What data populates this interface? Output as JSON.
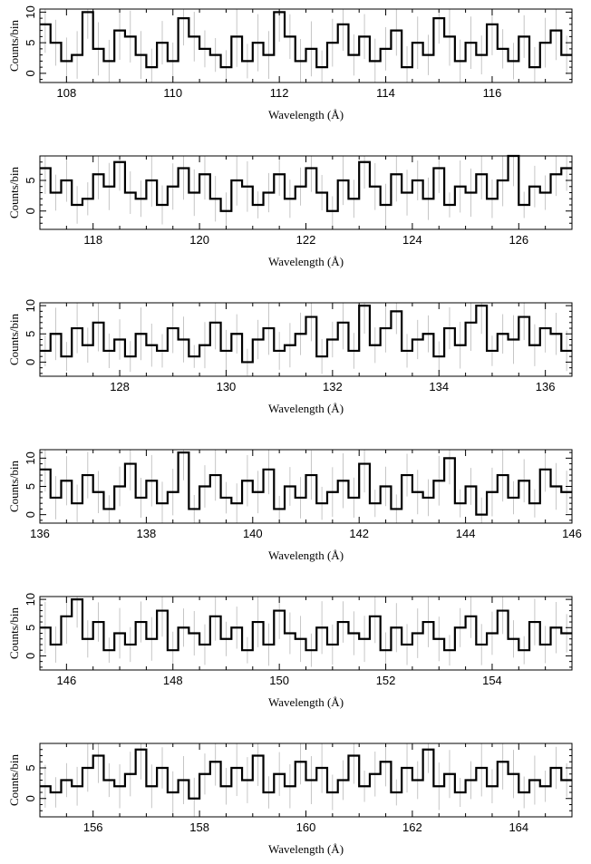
{
  "chart_data": [
    {
      "type": "line",
      "panel": 1,
      "xlabel": "Wavelength (Å)",
      "ylabel": "Counts/bin",
      "xlim": [
        107.5,
        117.5
      ],
      "ylim": [
        -1.5,
        10.5
      ],
      "xticks": [
        108,
        110,
        112,
        114,
        116
      ],
      "yticks": [
        0,
        5,
        10
      ],
      "seed": 1,
      "grid": false,
      "series": [
        {
          "style": "histogram-step",
          "values": [
            8,
            5,
            2,
            3,
            10,
            4,
            2,
            7,
            6,
            3,
            1,
            5,
            2,
            9,
            6,
            4,
            3,
            1,
            6,
            2,
            5,
            3,
            10,
            6,
            2,
            4,
            1,
            5,
            8,
            3,
            6,
            2,
            4,
            7,
            1,
            5,
            3,
            9,
            6,
            2,
            5,
            3,
            8,
            4,
            2,
            6,
            1,
            5,
            7,
            3
          ]
        }
      ]
    },
    {
      "type": "line",
      "panel": 2,
      "xlabel": "Wavelength (Å)",
      "ylabel": "Counts/bin",
      "xlim": [
        117,
        127
      ],
      "ylim": [
        -3,
        9
      ],
      "xticks": [
        118,
        120,
        122,
        124,
        126
      ],
      "yticks": [
        0,
        5
      ],
      "seed": 2,
      "grid": false,
      "series": [
        {
          "style": "histogram-step",
          "values": [
            7,
            3,
            5,
            1,
            2,
            6,
            4,
            8,
            3,
            2,
            5,
            1,
            4,
            7,
            3,
            6,
            2,
            0,
            5,
            4,
            1,
            3,
            6,
            2,
            4,
            7,
            3,
            0,
            5,
            2,
            8,
            4,
            1,
            6,
            3,
            5,
            2,
            7,
            1,
            4,
            3,
            6,
            2,
            5,
            9,
            1,
            4,
            3,
            6,
            7
          ]
        }
      ]
    },
    {
      "type": "line",
      "panel": 3,
      "xlabel": "Wavelength (Å)",
      "ylabel": "Counts/bin",
      "xlim": [
        126.5,
        136.5
      ],
      "ylim": [
        -2.5,
        10.5
      ],
      "xticks": [
        128,
        130,
        132,
        134,
        136
      ],
      "yticks": [
        0,
        5,
        10
      ],
      "seed": 3,
      "grid": false,
      "series": [
        {
          "style": "histogram-step",
          "values": [
            2,
            5,
            1,
            6,
            3,
            7,
            2,
            4,
            1,
            5,
            3,
            2,
            6,
            4,
            1,
            3,
            7,
            2,
            5,
            0,
            4,
            6,
            2,
            3,
            5,
            8,
            1,
            4,
            7,
            2,
            10,
            3,
            6,
            9,
            2,
            4,
            5,
            1,
            6,
            3,
            7,
            10,
            2,
            5,
            4,
            8,
            3,
            6,
            5,
            2
          ]
        }
      ]
    },
    {
      "type": "line",
      "panel": 4,
      "xlabel": "Wavelength (Å)",
      "ylabel": "Counts/bin",
      "xlim": [
        136,
        146
      ],
      "ylim": [
        -1.5,
        11.5
      ],
      "xticks": [
        136,
        138,
        140,
        142,
        144,
        146
      ],
      "yticks": [
        0,
        5,
        10
      ],
      "seed": 4,
      "grid": false,
      "series": [
        {
          "style": "histogram-step",
          "values": [
            8,
            3,
            6,
            2,
            7,
            4,
            1,
            5,
            9,
            3,
            6,
            2,
            4,
            11,
            1,
            5,
            7,
            3,
            2,
            6,
            4,
            8,
            1,
            5,
            3,
            7,
            2,
            4,
            6,
            3,
            9,
            2,
            5,
            1,
            7,
            4,
            3,
            6,
            10,
            2,
            5,
            0,
            4,
            7,
            3,
            6,
            2,
            8,
            5,
            4
          ]
        }
      ]
    },
    {
      "type": "line",
      "panel": 5,
      "xlabel": "Wavelength (Å)",
      "ylabel": "Counts/bin",
      "xlim": [
        145.5,
        155.5
      ],
      "ylim": [
        -2.5,
        10.5
      ],
      "xticks": [
        146,
        148,
        150,
        152,
        154
      ],
      "yticks": [
        0,
        5,
        10
      ],
      "seed": 5,
      "grid": false,
      "series": [
        {
          "style": "histogram-step",
          "values": [
            5,
            2,
            7,
            10,
            3,
            6,
            1,
            4,
            2,
            6,
            3,
            8,
            1,
            5,
            4,
            2,
            7,
            3,
            5,
            1,
            6,
            2,
            8,
            4,
            3,
            1,
            5,
            2,
            6,
            4,
            3,
            7,
            1,
            5,
            2,
            4,
            6,
            3,
            1,
            5,
            7,
            2,
            4,
            8,
            3,
            1,
            6,
            2,
            5,
            4
          ]
        }
      ]
    },
    {
      "type": "line",
      "panel": 6,
      "xlabel": "Wavelength (Å)",
      "ylabel": "Counts/bin",
      "xlim": [
        155,
        165
      ],
      "ylim": [
        -3,
        9
      ],
      "xticks": [
        156,
        158,
        160,
        162,
        164
      ],
      "yticks": [
        0,
        5
      ],
      "seed": 6,
      "grid": false,
      "series": [
        {
          "style": "histogram-step",
          "values": [
            2,
            1,
            3,
            2,
            5,
            7,
            3,
            2,
            4,
            8,
            2,
            5,
            1,
            3,
            0,
            4,
            6,
            2,
            5,
            3,
            7,
            1,
            4,
            2,
            6,
            3,
            5,
            1,
            3,
            7,
            2,
            4,
            6,
            1,
            5,
            3,
            8,
            2,
            4,
            1,
            3,
            5,
            2,
            6,
            4,
            1,
            3,
            2,
            5,
            3
          ]
        }
      ]
    }
  ]
}
